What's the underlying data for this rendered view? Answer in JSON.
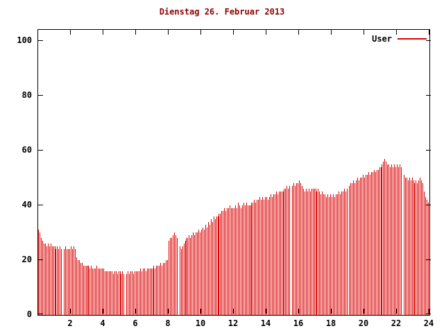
{
  "title": "Dienstag 26. Februar 2013",
  "legend": {
    "label": "User",
    "color": "#dd0000"
  },
  "chart_data": {
    "type": "bar",
    "title": "Dienstag 26. Februar 2013",
    "xlabel": "",
    "ylabel": "",
    "x_range": [
      0,
      24
    ],
    "y_range": [
      0,
      104
    ],
    "x_tick_values": [
      2,
      4,
      6,
      8,
      10,
      12,
      14,
      16,
      18,
      20,
      22,
      24
    ],
    "y_tick_values": [
      0,
      20,
      40,
      60,
      80,
      100
    ],
    "grid": false,
    "legend_position": "top-right",
    "interval_minutes": 5,
    "bar_color": "#dd0000",
    "series": [
      {
        "name": "User",
        "values": [
          31,
          30,
          28,
          27,
          26,
          26,
          25,
          26,
          25,
          26,
          25,
          25,
          25,
          24,
          25,
          24,
          25,
          24,
          0,
          24,
          25,
          24,
          24,
          24,
          25,
          24,
          25,
          24,
          21,
          20,
          20,
          19,
          19,
          18,
          18,
          18,
          18,
          18,
          17,
          18,
          17,
          17,
          17,
          18,
          17,
          17,
          17,
          17,
          17,
          16,
          16,
          16,
          16,
          16,
          16,
          15,
          16,
          16,
          15,
          16,
          16,
          15,
          16,
          15,
          0,
          15,
          16,
          15,
          16,
          16,
          15,
          16,
          16,
          16,
          16,
          17,
          16,
          17,
          17,
          16,
          17,
          17,
          17,
          17,
          17,
          18,
          17,
          18,
          18,
          18,
          19,
          18,
          19,
          19,
          20,
          20,
          27,
          28,
          28,
          29,
          30,
          29,
          28,
          0,
          25,
          24,
          25,
          26,
          27,
          28,
          28,
          29,
          28,
          29,
          30,
          29,
          30,
          30,
          31,
          30,
          31,
          32,
          31,
          33,
          32,
          34,
          33,
          35,
          34,
          36,
          35,
          36,
          36,
          37,
          37,
          38,
          38,
          39,
          38,
          39,
          39,
          40,
          39,
          39,
          39,
          40,
          39,
          41,
          40,
          39,
          40,
          41,
          40,
          41,
          40,
          40,
          40,
          41,
          41,
          42,
          41,
          42,
          42,
          43,
          42,
          43,
          42,
          43,
          43,
          42,
          43,
          44,
          43,
          44,
          44,
          45,
          44,
          45,
          45,
          45,
          45,
          46,
          46,
          47,
          46,
          47,
          0,
          47,
          48,
          47,
          48,
          48,
          49,
          48,
          47,
          46,
          45,
          46,
          45,
          46,
          45,
          46,
          46,
          46,
          46,
          45,
          46,
          45,
          44,
          45,
          44,
          44,
          43,
          44,
          43,
          44,
          43,
          44,
          43,
          44,
          44,
          45,
          44,
          45,
          45,
          46,
          45,
          46,
          0,
          47,
          48,
          48,
          49,
          48,
          49,
          50,
          49,
          50,
          50,
          51,
          50,
          51,
          51,
          52,
          51,
          52,
          52,
          53,
          52,
          53,
          53,
          54,
          54,
          55,
          56,
          57,
          56,
          55,
          55,
          54,
          55,
          54,
          55,
          54,
          55,
          54,
          55,
          54,
          0,
          51,
          50,
          50,
          49,
          50,
          49,
          50,
          49,
          48,
          49,
          48,
          49,
          50,
          49,
          48,
          45,
          43,
          42,
          41
        ]
      }
    ]
  }
}
